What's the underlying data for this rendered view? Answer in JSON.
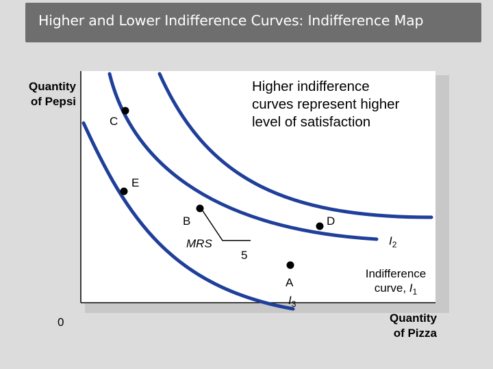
{
  "title": "Higher and Lower Indifference Curves: Indifference Map",
  "y_axis_label": [
    "Quantity",
    "of Pepsi"
  ],
  "x_axis_label": [
    "Quantity",
    "of Pizza"
  ],
  "origin": "0",
  "note": [
    "Higher indifference",
    "curves represent higher",
    "level of satisfaction"
  ],
  "points": {
    "C": "C",
    "E": "E",
    "B": "B",
    "D": "D",
    "A": "A"
  },
  "mrs_label": "MRS",
  "slope_run": "5",
  "curves": {
    "I2": {
      "letter": "I",
      "sub": "2"
    },
    "I3": {
      "letter": "I",
      "sub": "3"
    },
    "I1": {
      "prefix": "Indifference",
      "text": "curve, ",
      "letter": "I",
      "sub": "1"
    }
  },
  "colors": {
    "curve": "#1f3f9a",
    "title_bar": "#6e6e6e",
    "background": "#dcdcdc",
    "panel": "#ffffff"
  }
}
